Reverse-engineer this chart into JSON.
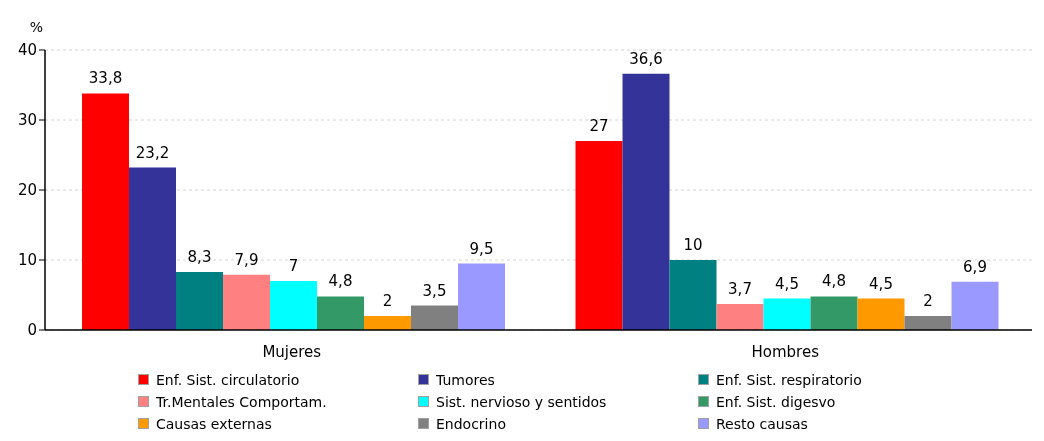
{
  "chart_data": {
    "type": "bar",
    "ylabel": "%",
    "categories": [
      "Mujeres",
      "Hombres"
    ],
    "series": [
      {
        "name": "Enf. Sist. circulatorio",
        "color": "#ff0000",
        "values": [
          33.8,
          27
        ],
        "value_labels": [
          "33,8",
          "27"
        ]
      },
      {
        "name": "Tumores",
        "color": "#333399",
        "values": [
          23.2,
          36.6
        ],
        "value_labels": [
          "23,2",
          "36,6"
        ]
      },
      {
        "name": "Enf. Sist. respiratorio",
        "color": "#008080",
        "values": [
          8.3,
          10
        ],
        "value_labels": [
          "8,3",
          "10"
        ]
      },
      {
        "name": "Tr.Mentales Comportam.",
        "color": "#ff8080",
        "values": [
          7.9,
          3.7
        ],
        "value_labels": [
          "7,9",
          "3,7"
        ]
      },
      {
        "name": "Sist. nervioso y sentidos",
        "color": "#00ffff",
        "values": [
          7,
          4.5
        ],
        "value_labels": [
          "7",
          "4,5"
        ]
      },
      {
        "name": "Enf. Sist. digesvo",
        "color": "#339966",
        "values": [
          4.8,
          4.8
        ],
        "value_labels": [
          "4,8",
          "4,8"
        ]
      },
      {
        "name": "Causas externas",
        "color": "#ff9900",
        "values": [
          2,
          4.5
        ],
        "value_labels": [
          "2",
          "4,5"
        ]
      },
      {
        "name": "Endocrino",
        "color": "#808080",
        "values": [
          3.5,
          2
        ],
        "value_labels": [
          "3,5",
          "2"
        ]
      },
      {
        "name": "Resto causas",
        "color": "#9999ff",
        "values": [
          9.5,
          6.9
        ],
        "value_labels": [
          "9,5",
          "6,9"
        ]
      }
    ],
    "ylim": [
      0,
      40
    ],
    "yticks": [
      0,
      10,
      20,
      30,
      40
    ],
    "grid": "y",
    "legend": "bottom"
  }
}
